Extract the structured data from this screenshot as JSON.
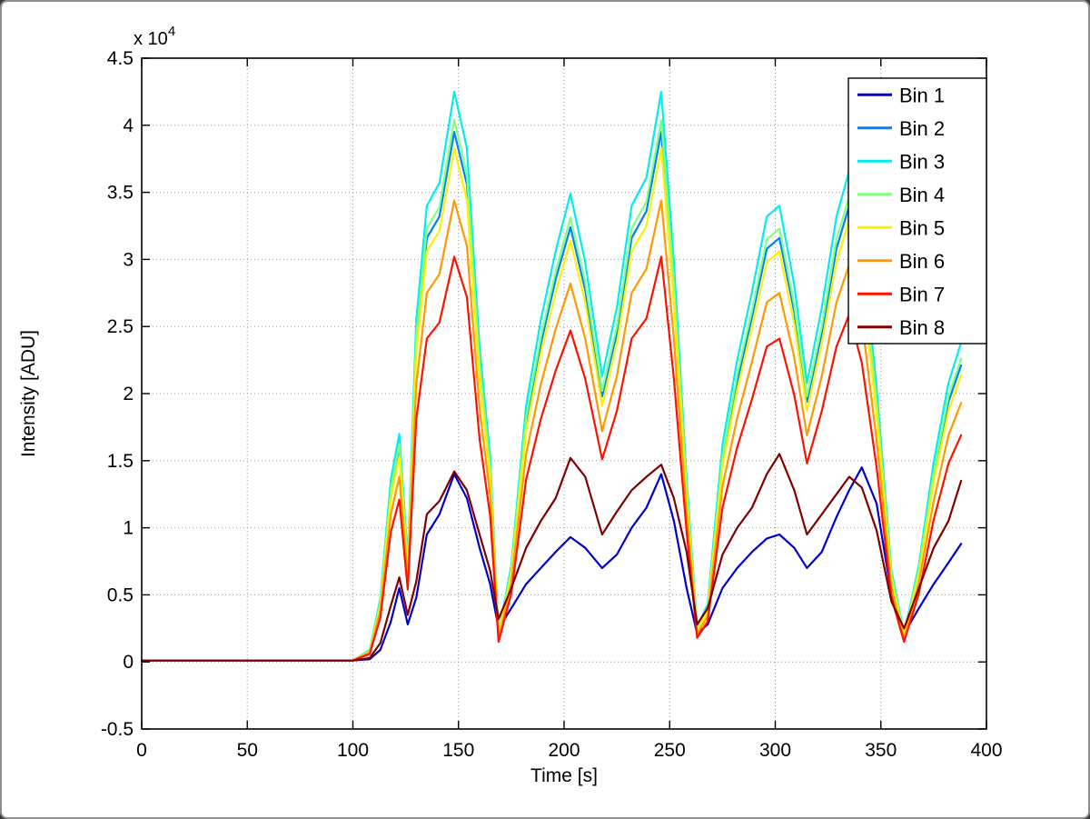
{
  "figure": {
    "background": "#ffffff",
    "frame_color": "#8f8f8f"
  },
  "chart_data": {
    "type": "line",
    "title": "",
    "xlabel": "Time [s]",
    "ylabel": "Intensity [ADU]",
    "y_multiplier": {
      "base": "x 10",
      "exponent": "4"
    },
    "xlim": [
      0,
      400
    ],
    "ylim": [
      -5000,
      45000
    ],
    "grid": true,
    "legend_position": "top-right",
    "xticks": [
      0,
      50,
      100,
      150,
      200,
      250,
      300,
      350,
      400
    ],
    "xtick_labels": [
      "0",
      "50",
      "100",
      "150",
      "200",
      "250",
      "300",
      "350",
      "400"
    ],
    "yticks": [
      -5000,
      0,
      5000,
      10000,
      15000,
      20000,
      25000,
      30000,
      35000,
      40000,
      45000
    ],
    "ytick_labels": [
      "-0.5",
      "0",
      "0.5",
      "1",
      "1.5",
      "2",
      "2.5",
      "3",
      "3.5",
      "4",
      "4.5"
    ],
    "x": [
      0,
      100,
      108,
      113,
      118,
      122,
      126,
      130,
      135,
      141,
      148,
      154,
      160,
      165,
      169,
      175,
      182,
      189,
      196,
      203,
      210,
      218,
      225,
      232,
      239,
      246,
      252,
      258,
      263,
      268,
      275,
      282,
      289,
      296,
      302,
      309,
      315,
      322,
      329,
      335,
      341,
      348,
      355,
      361,
      368,
      375,
      382,
      388
    ],
    "series": [
      {
        "name": "Bin 1",
        "color": "#0000CC",
        "values": [
          100,
          100,
          200,
          900,
          3000,
          5500,
          2800,
          4800,
          9500,
          11000,
          14000,
          12200,
          8500,
          5800,
          2500,
          4000,
          5800,
          7000,
          8200,
          9300,
          8500,
          7000,
          8000,
          10000,
          11500,
          14000,
          10500,
          5500,
          2100,
          2800,
          5500,
          7000,
          8200,
          9200,
          9500,
          8500,
          7000,
          8200,
          10800,
          12800,
          14500,
          11800,
          5000,
          2100,
          4000,
          5800,
          7400,
          8800
        ]
      },
      {
        "name": "Bin 2",
        "color": "#0080FF",
        "values": [
          100,
          100,
          800,
          4300,
          12600,
          15800,
          7100,
          23700,
          31600,
          33200,
          39500,
          35600,
          21700,
          14200,
          2000,
          6700,
          17800,
          23700,
          28500,
          32400,
          27700,
          19800,
          24500,
          31600,
          33600,
          39500,
          27700,
          12600,
          2400,
          4000,
          15000,
          20900,
          25700,
          30800,
          31600,
          26100,
          19400,
          24500,
          30800,
          34000,
          29200,
          19000,
          6300,
          2000,
          6700,
          13800,
          19400,
          22100
        ]
      },
      {
        "name": "Bin 3",
        "color": "#00EEEE",
        "values": [
          100,
          100,
          900,
          4700,
          13600,
          17000,
          7700,
          25500,
          34000,
          35700,
          42500,
          38300,
          23400,
          15300,
          2100,
          7200,
          19100,
          25500,
          30600,
          34900,
          29800,
          21300,
          26400,
          34000,
          36100,
          42500,
          29800,
          13600,
          2600,
          4300,
          16200,
          22500,
          27600,
          33200,
          34000,
          28100,
          20800,
          26400,
          33200,
          36600,
          31500,
          20400,
          6800,
          2100,
          7200,
          14900,
          20800,
          23800
        ]
      },
      {
        "name": "Bin 4",
        "color": "#80FF80",
        "values": [
          100,
          100,
          800,
          4400,
          12900,
          16200,
          7300,
          24200,
          32300,
          33900,
          40400,
          36300,
          22200,
          14500,
          2000,
          6900,
          18200,
          24200,
          29100,
          33100,
          28300,
          20200,
          25000,
          32300,
          34300,
          40400,
          28300,
          12900,
          2400,
          4000,
          15300,
          21400,
          26200,
          31500,
          32300,
          26600,
          19800,
          25000,
          31500,
          34700,
          29900,
          19400,
          6500,
          2000,
          6900,
          14100,
          19800,
          22600
        ]
      },
      {
        "name": "Bin 5",
        "color": "#FFF000",
        "values": [
          100,
          100,
          800,
          4200,
          12200,
          15300,
          6900,
          23000,
          30600,
          32100,
          38300,
          34400,
          21000,
          13800,
          1900,
          6500,
          17200,
          23000,
          27500,
          31400,
          26800,
          19100,
          23700,
          30600,
          32500,
          38300,
          26800,
          12200,
          2300,
          3800,
          14500,
          20300,
          24900,
          29800,
          30600,
          25200,
          18700,
          23700,
          29800,
          32900,
          28300,
          18400,
          6100,
          1900,
          6500,
          13400,
          18700,
          21400
        ]
      },
      {
        "name": "Bin 6",
        "color": "#FF9900",
        "values": [
          100,
          100,
          700,
          3800,
          11000,
          13800,
          6200,
          20700,
          27500,
          28900,
          34400,
          31000,
          18900,
          12400,
          1700,
          5900,
          15500,
          20700,
          24800,
          28200,
          24100,
          17200,
          21300,
          27500,
          29300,
          34400,
          24100,
          11000,
          2100,
          3400,
          13100,
          18200,
          22400,
          26800,
          27500,
          22700,
          16900,
          21300,
          26800,
          29600,
          25500,
          16500,
          5500,
          1700,
          5900,
          12000,
          16900,
          19300
        ]
      },
      {
        "name": "Bin 7",
        "color": "#FF1100",
        "values": [
          100,
          100,
          600,
          3300,
          9700,
          12100,
          5400,
          18100,
          24100,
          25300,
          30200,
          27200,
          16600,
          10900,
          1500,
          5100,
          13600,
          18100,
          21700,
          24700,
          21100,
          15100,
          18700,
          24100,
          25600,
          30200,
          21100,
          9700,
          1800,
          3000,
          11500,
          16000,
          19600,
          23500,
          24100,
          19900,
          14800,
          18700,
          23500,
          25900,
          22300,
          14500,
          4800,
          1500,
          5100,
          10600,
          14800,
          16900
        ]
      },
      {
        "name": "Bin 8",
        "color": "#800000",
        "values": [
          100,
          100,
          300,
          1400,
          4200,
          6300,
          3500,
          6000,
          11000,
          12000,
          14200,
          12800,
          9500,
          6800,
          3200,
          5500,
          8500,
          10500,
          12200,
          15200,
          13800,
          9500,
          11200,
          12800,
          13800,
          14700,
          12200,
          8200,
          2800,
          4000,
          8000,
          10000,
          11500,
          14000,
          15500,
          12800,
          9500,
          11000,
          12500,
          13800,
          13000,
          9800,
          4500,
          2500,
          5500,
          8500,
          10500,
          13500
        ]
      }
    ]
  }
}
